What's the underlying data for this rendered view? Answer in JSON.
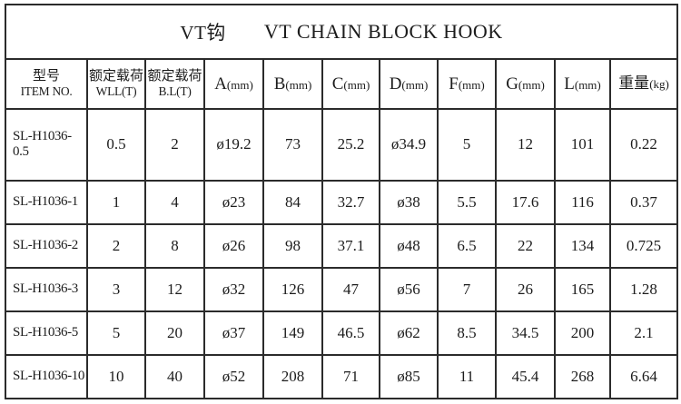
{
  "title": {
    "cn": "VT钩",
    "en": "VT CHAIN BLOCK HOOK"
  },
  "table": {
    "columns": [
      {
        "top": "型号",
        "bottom": "ITEM NO."
      },
      {
        "top": "额定载荷",
        "bottom": "WLL(T)"
      },
      {
        "top": "额定载荷",
        "bottom": "B.L(T)"
      },
      {
        "main": "A",
        "unit": "(mm)"
      },
      {
        "main": "B",
        "unit": "(mm)"
      },
      {
        "main": "C",
        "unit": "(mm)"
      },
      {
        "main": "D",
        "unit": "(mm)"
      },
      {
        "main": "F",
        "unit": "(mm)"
      },
      {
        "main": "G",
        "unit": "(mm)"
      },
      {
        "main": "L",
        "unit": "(mm)"
      },
      {
        "main": "重量",
        "unit": "(kg)"
      }
    ],
    "rows": [
      [
        "SL-H1036-0.5",
        "0.5",
        "2",
        "ø19.2",
        "73",
        "25.2",
        "ø34.9",
        "5",
        "12",
        "101",
        "0.22"
      ],
      [
        "SL-H1036-1",
        "1",
        "4",
        "ø23",
        "84",
        "32.7",
        "ø38",
        "5.5",
        "17.6",
        "116",
        "0.37"
      ],
      [
        "SL-H1036-2",
        "2",
        "8",
        "ø26",
        "98",
        "37.1",
        "ø48",
        "6.5",
        "22",
        "134",
        "0.725"
      ],
      [
        "SL-H1036-3",
        "3",
        "12",
        "ø32",
        "126",
        "47",
        "ø56",
        "7",
        "26",
        "165",
        "1.28"
      ],
      [
        "SL-H1036-5",
        "5",
        "20",
        "ø37",
        "149",
        "46.5",
        "ø62",
        "8.5",
        "34.5",
        "200",
        "2.1"
      ],
      [
        "SL-H1036-10",
        "10",
        "40",
        "ø52",
        "208",
        "71",
        "ø85",
        "11",
        "45.4",
        "268",
        "6.64"
      ]
    ]
  },
  "colors": {
    "border": "#2b2b2b",
    "text": "#1c1c1c",
    "background": "#ffffff"
  }
}
